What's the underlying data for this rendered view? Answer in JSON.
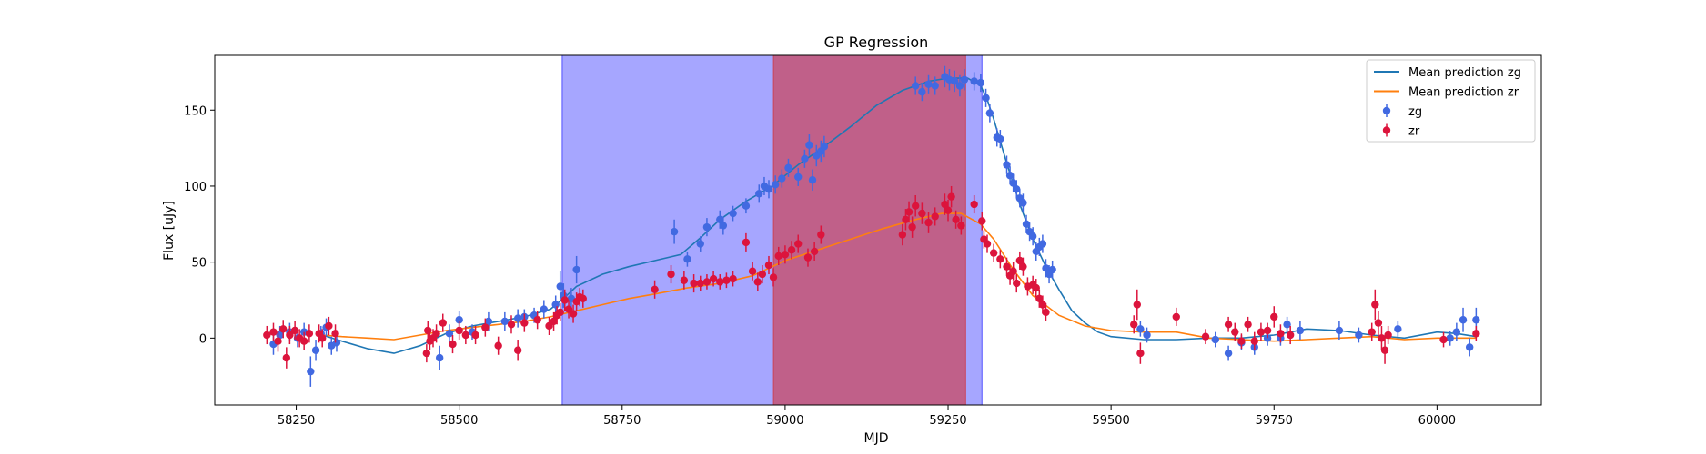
{
  "chart_data": {
    "type": "scatter",
    "title": "GP Regression",
    "xlabel": "MJD",
    "ylabel": "Flux [uJy]",
    "xlim": [
      58125,
      60160
    ],
    "ylim": [
      -44,
      186
    ],
    "xticks": [
      58250,
      58500,
      58750,
      59000,
      59250,
      59500,
      59750,
      60000
    ],
    "yticks": [
      0,
      50,
      100,
      150
    ],
    "grid": false,
    "legend_position": "top-right",
    "shaded_regions": [
      {
        "x0": 58658,
        "x1": 59302,
        "color": "#0000ff",
        "opacity": 0.35
      },
      {
        "x0": 58982,
        "x1": 59277,
        "color": "#d62728",
        "opacity": 0.55
      }
    ],
    "series": [
      {
        "name": "Mean prediction zg",
        "kind": "line",
        "color": "#1f77b4",
        "x": [
          58290,
          58320,
          58360,
          58400,
          58440,
          58480,
          58520,
          58560,
          58600,
          58640,
          58660,
          58680,
          58720,
          58760,
          58800,
          58840,
          58870,
          58900,
          58940,
          58980,
          59020,
          59060,
          59100,
          59140,
          59180,
          59220,
          59250,
          59280,
          59300,
          59310,
          59320,
          59340,
          59360,
          59380,
          59400,
          59420,
          59440,
          59460,
          59480,
          59500,
          59550,
          59600,
          59650,
          59700,
          59750,
          59800,
          59850,
          59900,
          59950,
          60000,
          60030,
          60060
        ],
        "y": [
          2,
          -2,
          -7,
          -10,
          -5,
          3,
          8,
          11,
          14,
          19,
          26,
          34,
          42,
          47,
          51,
          55,
          66,
          78,
          90,
          100,
          114,
          126,
          139,
          153,
          163,
          169,
          171,
          171,
          166,
          157,
          144,
          115,
          88,
          65,
          47,
          32,
          18,
          10,
          4,
          1,
          -1,
          -1,
          0,
          0,
          2,
          6,
          5,
          2,
          0,
          4,
          3,
          1
        ]
      },
      {
        "name": "Mean prediction zr",
        "kind": "line",
        "color": "#ff7f0e",
        "x": [
          58290,
          58320,
          58360,
          58400,
          58440,
          58480,
          58520,
          58560,
          58600,
          58640,
          58680,
          58720,
          58760,
          58800,
          58850,
          58900,
          58950,
          59000,
          59050,
          59100,
          59150,
          59200,
          59240,
          59270,
          59300,
          59320,
          59350,
          59380,
          59420,
          59460,
          59500,
          59550,
          59600,
          59650,
          59700,
          59750,
          59800,
          59850,
          59900,
          59950,
          60000,
          60060
        ],
        "y": [
          2,
          1,
          0,
          -1,
          2,
          5,
          7,
          9,
          11,
          14,
          18,
          22,
          26,
          29,
          33,
          36,
          41,
          51,
          58,
          65,
          72,
          78,
          82,
          82,
          75,
          65,
          45,
          28,
          15,
          8,
          5,
          4,
          4,
          0,
          -1,
          -2,
          -1,
          0,
          1,
          -1,
          0,
          0
        ]
      },
      {
        "name": "zg",
        "kind": "errorbar",
        "color": "#4169e1",
        "points": [
          [
            58215,
            -4,
            7
          ],
          [
            58225,
            2,
            6
          ],
          [
            58240,
            4,
            6
          ],
          [
            58252,
            0,
            6
          ],
          [
            58262,
            4,
            6
          ],
          [
            58272,
            -22,
            10
          ],
          [
            58280,
            -8,
            7
          ],
          [
            58288,
            3,
            5
          ],
          [
            58296,
            7,
            6
          ],
          [
            58304,
            -5,
            6
          ],
          [
            58312,
            -3,
            6
          ],
          [
            58470,
            -13,
            8
          ],
          [
            58485,
            3,
            6
          ],
          [
            58500,
            12,
            6
          ],
          [
            58520,
            4,
            5
          ],
          [
            58545,
            11,
            6
          ],
          [
            58570,
            11,
            6
          ],
          [
            58590,
            13,
            6
          ],
          [
            58600,
            14,
            5
          ],
          [
            58615,
            15,
            5
          ],
          [
            58630,
            19,
            6
          ],
          [
            58648,
            22,
            6
          ],
          [
            58655,
            34,
            10
          ],
          [
            58660,
            28,
            8
          ],
          [
            58672,
            26,
            7
          ],
          [
            58680,
            45,
            9
          ],
          [
            58830,
            70,
            8
          ],
          [
            58850,
            52,
            5
          ],
          [
            58870,
            62,
            5
          ],
          [
            58880,
            73,
            6
          ],
          [
            58900,
            78,
            6
          ],
          [
            58905,
            74,
            6
          ],
          [
            58920,
            82,
            5
          ],
          [
            58940,
            87,
            5
          ],
          [
            58960,
            95,
            6
          ],
          [
            58968,
            100,
            6
          ],
          [
            58975,
            98,
            6
          ],
          [
            58985,
            101,
            6
          ],
          [
            58995,
            105,
            6
          ],
          [
            59005,
            112,
            6
          ],
          [
            59020,
            106,
            6
          ],
          [
            59030,
            118,
            6
          ],
          [
            59037,
            127,
            7
          ],
          [
            59042,
            104,
            7
          ],
          [
            59048,
            120,
            7
          ],
          [
            59055,
            123,
            7
          ],
          [
            59060,
            126,
            7
          ],
          [
            59200,
            166,
            6
          ],
          [
            59210,
            162,
            6
          ],
          [
            59220,
            167,
            6
          ],
          [
            59230,
            166,
            6
          ],
          [
            59245,
            172,
            7
          ],
          [
            59252,
            170,
            7
          ],
          [
            59260,
            169,
            7
          ],
          [
            59268,
            166,
            7
          ],
          [
            59275,
            170,
            7
          ],
          [
            59290,
            169,
            6
          ],
          [
            59300,
            168,
            6
          ],
          [
            59308,
            158,
            6
          ],
          [
            59314,
            148,
            6
          ],
          [
            59325,
            132,
            6
          ],
          [
            59330,
            131,
            6
          ],
          [
            59340,
            114,
            6
          ],
          [
            59345,
            107,
            6
          ],
          [
            59350,
            102,
            6
          ],
          [
            59355,
            98,
            6
          ],
          [
            59360,
            92,
            6
          ],
          [
            59365,
            89,
            6
          ],
          [
            59370,
            75,
            6
          ],
          [
            59375,
            70,
            6
          ],
          [
            59380,
            67,
            6
          ],
          [
            59385,
            57,
            6
          ],
          [
            59390,
            60,
            6
          ],
          [
            59395,
            62,
            6
          ],
          [
            59400,
            46,
            6
          ],
          [
            59405,
            42,
            6
          ],
          [
            59410,
            45,
            6
          ],
          [
            59545,
            6,
            5
          ],
          [
            59555,
            2,
            5
          ],
          [
            59660,
            -1,
            5
          ],
          [
            59680,
            -10,
            5
          ],
          [
            59700,
            -3,
            5
          ],
          [
            59720,
            -6,
            5
          ],
          [
            59740,
            0,
            5
          ],
          [
            59760,
            0,
            5
          ],
          [
            59770,
            9,
            5
          ],
          [
            59790,
            5,
            6
          ],
          [
            59850,
            5,
            6
          ],
          [
            59880,
            2,
            5
          ],
          [
            59940,
            6,
            5
          ],
          [
            60020,
            0,
            5
          ],
          [
            60030,
            4,
            6
          ],
          [
            60040,
            12,
            8
          ],
          [
            60050,
            -6,
            6
          ],
          [
            60060,
            12,
            8
          ]
        ]
      },
      {
        "name": "zr",
        "kind": "errorbar",
        "color": "#dc143c",
        "points": [
          [
            58205,
            2,
            6
          ],
          [
            58215,
            4,
            6
          ],
          [
            58222,
            -2,
            7
          ],
          [
            58230,
            6,
            6
          ],
          [
            58235,
            -13,
            7
          ],
          [
            58240,
            2,
            6
          ],
          [
            58248,
            5,
            6
          ],
          [
            58255,
            0,
            6
          ],
          [
            58262,
            -2,
            6
          ],
          [
            58270,
            3,
            6
          ],
          [
            58285,
            3,
            6
          ],
          [
            58290,
            0,
            6
          ],
          [
            58300,
            8,
            6
          ],
          [
            58310,
            3,
            6
          ],
          [
            58450,
            -10,
            6
          ],
          [
            58452,
            5,
            6
          ],
          [
            58455,
            -2,
            6
          ],
          [
            58460,
            0,
            6
          ],
          [
            58465,
            3,
            6
          ],
          [
            58475,
            10,
            6
          ],
          [
            58490,
            -4,
            6
          ],
          [
            58500,
            5,
            6
          ],
          [
            58510,
            2,
            6
          ],
          [
            58525,
            2,
            6
          ],
          [
            58540,
            7,
            6
          ],
          [
            58560,
            -5,
            6
          ],
          [
            58580,
            9,
            6
          ],
          [
            58590,
            -8,
            7
          ],
          [
            58600,
            10,
            6
          ],
          [
            58620,
            12,
            6
          ],
          [
            58638,
            8,
            6
          ],
          [
            58645,
            11,
            6
          ],
          [
            58650,
            15,
            6
          ],
          [
            58655,
            17,
            6
          ],
          [
            58662,
            25,
            7
          ],
          [
            58668,
            19,
            6
          ],
          [
            58675,
            16,
            6
          ],
          [
            58680,
            24,
            6
          ],
          [
            58685,
            27,
            6
          ],
          [
            58690,
            26,
            6
          ],
          [
            58800,
            32,
            6
          ],
          [
            58825,
            42,
            6
          ],
          [
            58845,
            38,
            6
          ],
          [
            58860,
            36,
            6
          ],
          [
            58870,
            36,
            5
          ],
          [
            58880,
            37,
            5
          ],
          [
            58890,
            39,
            5
          ],
          [
            58900,
            37,
            5
          ],
          [
            58910,
            38,
            5
          ],
          [
            58920,
            39,
            5
          ],
          [
            58940,
            63,
            6
          ],
          [
            58950,
            44,
            6
          ],
          [
            58958,
            37,
            6
          ],
          [
            58965,
            42,
            6
          ],
          [
            58975,
            48,
            6
          ],
          [
            58982,
            40,
            6
          ],
          [
            58990,
            54,
            6
          ],
          [
            59000,
            55,
            6
          ],
          [
            59010,
            58,
            6
          ],
          [
            59020,
            62,
            6
          ],
          [
            59035,
            53,
            6
          ],
          [
            59045,
            57,
            6
          ],
          [
            59055,
            68,
            6
          ],
          [
            59180,
            68,
            7
          ],
          [
            59185,
            78,
            7
          ],
          [
            59190,
            83,
            7
          ],
          [
            59195,
            73,
            7
          ],
          [
            59200,
            87,
            7
          ],
          [
            59210,
            82,
            7
          ],
          [
            59220,
            76,
            7
          ],
          [
            59230,
            80,
            6
          ],
          [
            59245,
            88,
            7
          ],
          [
            59250,
            84,
            7
          ],
          [
            59255,
            93,
            7
          ],
          [
            59262,
            78,
            6
          ],
          [
            59270,
            74,
            6
          ],
          [
            59290,
            88,
            6
          ],
          [
            59302,
            77,
            6
          ],
          [
            59305,
            65,
            6
          ],
          [
            59310,
            62,
            6
          ],
          [
            59320,
            56,
            6
          ],
          [
            59330,
            52,
            6
          ],
          [
            59340,
            47,
            6
          ],
          [
            59345,
            41,
            6
          ],
          [
            59350,
            44,
            6
          ],
          [
            59355,
            36,
            6
          ],
          [
            59360,
            51,
            6
          ],
          [
            59365,
            47,
            6
          ],
          [
            59372,
            34,
            6
          ],
          [
            59380,
            35,
            6
          ],
          [
            59385,
            33,
            6
          ],
          [
            59390,
            26,
            6
          ],
          [
            59395,
            22,
            6
          ],
          [
            59400,
            17,
            6
          ],
          [
            59535,
            9,
            6
          ],
          [
            59540,
            22,
            10
          ],
          [
            59545,
            -10,
            7
          ],
          [
            59600,
            14,
            6
          ],
          [
            59645,
            1,
            5
          ],
          [
            59680,
            9,
            5
          ],
          [
            59690,
            4,
            6
          ],
          [
            59700,
            -2,
            5
          ],
          [
            59710,
            9,
            5
          ],
          [
            59720,
            -2,
            6
          ],
          [
            59730,
            4,
            6
          ],
          [
            59740,
            5,
            5
          ],
          [
            59750,
            14,
            7
          ],
          [
            59760,
            3,
            6
          ],
          [
            59775,
            2,
            6
          ],
          [
            59900,
            4,
            6
          ],
          [
            59905,
            22,
            10
          ],
          [
            59910,
            10,
            8
          ],
          [
            59915,
            0,
            8
          ],
          [
            59920,
            -8,
            9
          ],
          [
            59925,
            2,
            6
          ],
          [
            60010,
            -1,
            5
          ],
          [
            60060,
            3,
            5
          ]
        ]
      }
    ]
  }
}
